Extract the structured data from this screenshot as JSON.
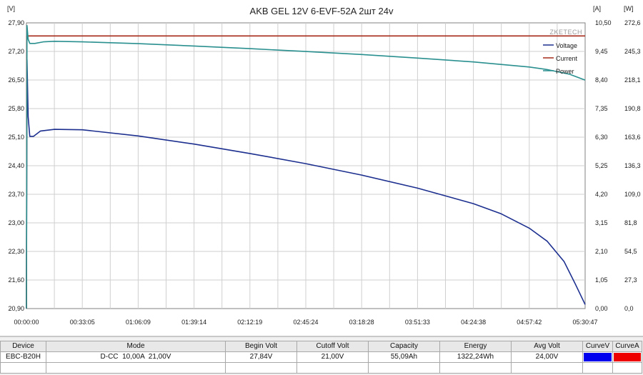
{
  "chart_data": {
    "type": "line",
    "title": "AKB GEL 12V 6-EVF-52A 2шт 24v",
    "watermark": "ZKETECH",
    "axis_units": {
      "left": "[V]",
      "right_current": "[A]",
      "right_power": "[W]"
    },
    "x_axis": {
      "unit": "seconds",
      "range": [
        0,
        19847
      ],
      "tick_seconds": [
        0,
        1985,
        3969,
        5954,
        7939,
        9924,
        11908,
        13893,
        15878,
        17862,
        19847
      ],
      "tick_labels": [
        "00:00:00",
        "00:33:05",
        "01:06:09",
        "01:39:14",
        "02:12:19",
        "02:45:24",
        "03:18:28",
        "03:51:33",
        "04:24:38",
        "04:57:42",
        "05:30:47"
      ]
    },
    "y_voltage": {
      "range": [
        20.9,
        27.9
      ],
      "tick_labels": [
        "27,90",
        "27,20",
        "26,50",
        "25,80",
        "25,10",
        "24,40",
        "23,70",
        "23,00",
        "22,30",
        "21,60",
        "20,90"
      ]
    },
    "y_current": {
      "range": [
        0,
        10.5
      ],
      "tick_labels": [
        "10,50",
        "9,45",
        "8,40",
        "7,35",
        "6,30",
        "5,25",
        "4,20",
        "3,15",
        "2,10",
        "1,05",
        "0,00"
      ]
    },
    "y_power": {
      "range": [
        0,
        272.6
      ],
      "tick_labels": [
        "272,6",
        "245,3",
        "218,1",
        "190,8",
        "163,6",
        "136,3",
        "109,0",
        "81,8",
        "54,5",
        "27,3",
        "0,0"
      ]
    },
    "legend": {
      "placement": "top-right"
    },
    "grid": true,
    "series": [
      {
        "name": "Voltage",
        "axis": "voltage",
        "color": "#1c2f8f",
        "points": [
          [
            0,
            20.9
          ],
          [
            20,
            27.0
          ],
          [
            60,
            25.6
          ],
          [
            120,
            25.12
          ],
          [
            250,
            25.12
          ],
          [
            500,
            25.25
          ],
          [
            1000,
            25.29
          ],
          [
            1985,
            25.28
          ],
          [
            3969,
            25.13
          ],
          [
            5954,
            24.93
          ],
          [
            7939,
            24.7
          ],
          [
            9924,
            24.45
          ],
          [
            11908,
            24.17
          ],
          [
            13893,
            23.85
          ],
          [
            15878,
            23.47
          ],
          [
            16870,
            23.22
          ],
          [
            17862,
            22.87
          ],
          [
            18500,
            22.55
          ],
          [
            19100,
            22.05
          ],
          [
            19500,
            21.5
          ],
          [
            19847,
            21.0
          ]
        ]
      },
      {
        "name": "Current",
        "axis": "current",
        "color": "#a52a1a",
        "points": [
          [
            0,
            0
          ],
          [
            15,
            10.02
          ],
          [
            19847,
            10.02
          ]
        ]
      },
      {
        "name": "Power",
        "axis": "power",
        "color": "#2a8f8f",
        "points": [
          [
            0,
            0
          ],
          [
            20,
            270.0
          ],
          [
            60,
            257.0
          ],
          [
            120,
            253.0
          ],
          [
            300,
            253.0
          ],
          [
            600,
            254.5
          ],
          [
            1000,
            255.0
          ],
          [
            1985,
            254.5
          ],
          [
            3969,
            252.8
          ],
          [
            5954,
            250.5
          ],
          [
            7939,
            248.0
          ],
          [
            9924,
            245.3
          ],
          [
            11908,
            242.4
          ],
          [
            13893,
            239.0
          ],
          [
            15878,
            235.3
          ],
          [
            17862,
            230.5
          ],
          [
            18500,
            228.0
          ],
          [
            19300,
            223.5
          ],
          [
            19847,
            218.0
          ]
        ]
      }
    ]
  },
  "summary_table": {
    "headers": [
      "Device",
      "Mode",
      "Begin Volt",
      "Cutoff Volt",
      "Capacity",
      "Energy",
      "Avg Volt",
      "CurveV",
      "CurveA"
    ],
    "row": [
      "EBC-B20H",
      "D-CC  10,00A  21,00V",
      "27,84V",
      "21,00V",
      "55,09Ah",
      "1322,24Wh",
      "24,00V"
    ],
    "swatch_colors": {
      "curve_v": "#0000ee",
      "curve_a": "#ee0000"
    }
  }
}
